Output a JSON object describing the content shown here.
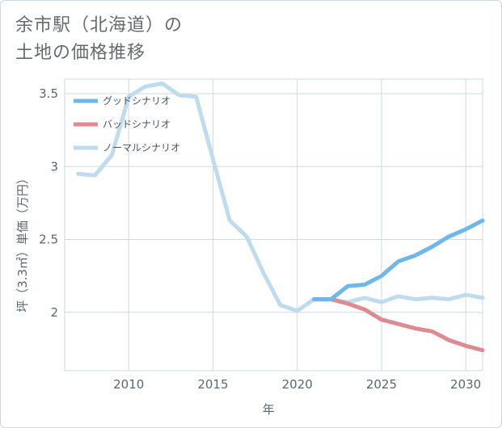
{
  "title": {
    "line1": "余市駅（北海道）の",
    "line2": "土地の価格推移"
  },
  "chart_data": {
    "type": "line",
    "xlabel": "年",
    "ylabel": "坪（3.3㎡）単価（万円）",
    "xlim": [
      2006.2,
      2031
    ],
    "ylim": [
      1.6,
      3.6
    ],
    "x_ticks": [
      2010,
      2015,
      2020,
      2025,
      2030
    ],
    "y_ticks": [
      2,
      2.5,
      3,
      3.5
    ],
    "y_tick_labels": [
      "2",
      "2.5",
      "3",
      "3.5"
    ],
    "grid": true,
    "legend_position": "top-left",
    "series": [
      {
        "name": "グッドシナリオ",
        "color": "#6cb8ea",
        "x": [
          2021,
          2022,
          2023,
          2024,
          2025,
          2026,
          2027,
          2028,
          2029,
          2030,
          2031
        ],
        "y": [
          2.09,
          2.09,
          2.18,
          2.19,
          2.25,
          2.35,
          2.39,
          2.45,
          2.52,
          2.57,
          2.63
        ]
      },
      {
        "name": "バッドシナリオ",
        "color": "#dd8a90",
        "x": [
          2021,
          2022,
          2023,
          2024,
          2025,
          2026,
          2027,
          2028,
          2029,
          2030,
          2031
        ],
        "y": [
          2.09,
          2.09,
          2.06,
          2.02,
          1.95,
          1.92,
          1.89,
          1.87,
          1.81,
          1.77,
          1.74
        ]
      },
      {
        "name": "ノーマルシナリオ",
        "color": "#bedceb",
        "x": [
          2007,
          2008,
          2009,
          2010,
          2011,
          2012,
          2013,
          2014,
          2015,
          2016,
          2017,
          2018,
          2019,
          2020,
          2021,
          2022,
          2023,
          2024,
          2025,
          2026,
          2027,
          2028,
          2029,
          2030,
          2031
        ],
        "y": [
          2.95,
          2.94,
          3.08,
          3.48,
          3.55,
          3.57,
          3.49,
          3.48,
          3.05,
          2.63,
          2.52,
          2.27,
          2.05,
          2.01,
          2.09,
          2.09,
          2.07,
          2.1,
          2.07,
          2.11,
          2.09,
          2.1,
          2.09,
          2.12,
          2.1
        ]
      }
    ]
  }
}
